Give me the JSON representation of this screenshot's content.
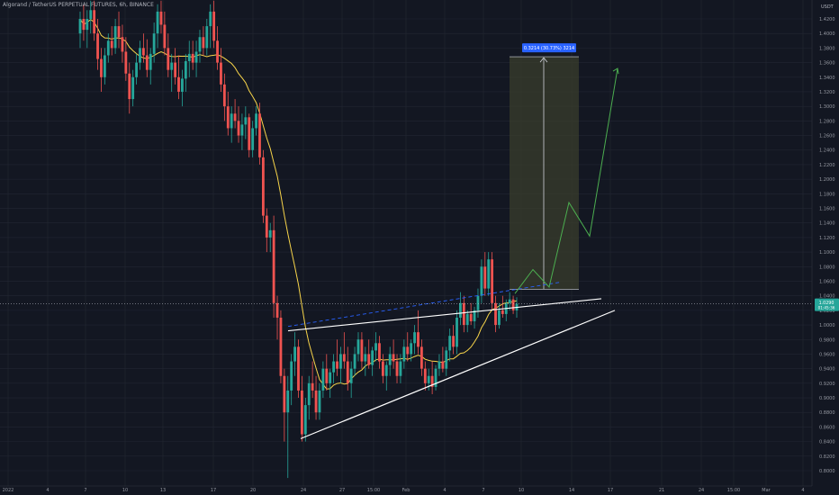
{
  "chart_data": {
    "type": "candlestick",
    "title": "Algorand / TetherUS PERPETUAL FUTURES, 6h, BINANCE",
    "ylabel": "USDT",
    "ylim": [
      0.79,
      1.445
    ],
    "ytick_labels": [
      "1.4200",
      "1.4000",
      "1.3800",
      "1.3600",
      "1.3400",
      "1.3200",
      "1.3000",
      "1.2800",
      "1.2600",
      "1.2400",
      "1.2200",
      "1.2000",
      "1.1800",
      "1.1600",
      "1.1400",
      "1.1200",
      "1.1000",
      "1.0800",
      "1.0600",
      "1.0400",
      "1.0200",
      "1.0000",
      "0.9800",
      "0.9600",
      "0.9400",
      "0.9200",
      "0.9000",
      "0.8800",
      "0.8600",
      "0.8400",
      "0.8200",
      "0.8000"
    ],
    "xtick_labels": [
      "2022",
      "4",
      "7",
      "10",
      "13",
      "17",
      "20",
      "24",
      "27",
      "15:00",
      "Feb",
      "4",
      "7",
      "10",
      "14",
      "17",
      "21",
      "24",
      "15:00",
      "Mar",
      "4"
    ],
    "current_price": "1.0290",
    "current_price_sub": "01:45:36",
    "target_label": "0.3214 (30.73%) 3214",
    "target_box": {
      "bottom": 1.049,
      "top": 1.368
    },
    "projection_path": [
      [
        1.043
      ],
      [
        1.076
      ],
      [
        1.052
      ],
      [
        1.168
      ],
      [
        1.122
      ],
      [
        1.352
      ]
    ],
    "wedge_upper_line": [
      0.992,
      1.036
    ],
    "wedge_lower_line": [
      0.844,
      1.02
    ],
    "resistance_dashed_line": [
      0.998,
      1.059
    ],
    "candles": [
      {
        "o": 1.4,
        "h": 1.43,
        "l": 1.38,
        "c": 1.42
      },
      {
        "o": 1.42,
        "h": 1.44,
        "l": 1.39,
        "c": 1.405
      },
      {
        "o": 1.405,
        "h": 1.432,
        "l": 1.38,
        "c": 1.42
      },
      {
        "o": 1.42,
        "h": 1.445,
        "l": 1.4,
        "c": 1.432
      },
      {
        "o": 1.432,
        "h": 1.445,
        "l": 1.39,
        "c": 1.4
      },
      {
        "o": 1.4,
        "h": 1.42,
        "l": 1.35,
        "c": 1.365
      },
      {
        "o": 1.365,
        "h": 1.38,
        "l": 1.32,
        "c": 1.34
      },
      {
        "o": 1.34,
        "h": 1.38,
        "l": 1.33,
        "c": 1.37
      },
      {
        "o": 1.37,
        "h": 1.4,
        "l": 1.36,
        "c": 1.39
      },
      {
        "o": 1.39,
        "h": 1.41,
        "l": 1.37,
        "c": 1.38
      },
      {
        "o": 1.38,
        "h": 1.42,
        "l": 1.372,
        "c": 1.41
      },
      {
        "o": 1.41,
        "h": 1.43,
        "l": 1.38,
        "c": 1.395
      },
      {
        "o": 1.395,
        "h": 1.412,
        "l": 1.36,
        "c": 1.375
      },
      {
        "o": 1.375,
        "h": 1.395,
        "l": 1.335,
        "c": 1.345
      },
      {
        "o": 1.345,
        "h": 1.36,
        "l": 1.29,
        "c": 1.31
      },
      {
        "o": 1.31,
        "h": 1.35,
        "l": 1.3,
        "c": 1.34
      },
      {
        "o": 1.34,
        "h": 1.372,
        "l": 1.33,
        "c": 1.36
      },
      {
        "o": 1.36,
        "h": 1.39,
        "l": 1.35,
        "c": 1.38
      },
      {
        "o": 1.38,
        "h": 1.4,
        "l": 1.36,
        "c": 1.37
      },
      {
        "o": 1.37,
        "h": 1.392,
        "l": 1.34,
        "c": 1.35
      },
      {
        "o": 1.35,
        "h": 1.38,
        "l": 1.33,
        "c": 1.372
      },
      {
        "o": 1.372,
        "h": 1.415,
        "l": 1.36,
        "c": 1.4
      },
      {
        "o": 1.4,
        "h": 1.44,
        "l": 1.38,
        "c": 1.43
      },
      {
        "o": 1.43,
        "h": 1.445,
        "l": 1.4,
        "c": 1.412
      },
      {
        "o": 1.412,
        "h": 1.43,
        "l": 1.37,
        "c": 1.38
      },
      {
        "o": 1.38,
        "h": 1.4,
        "l": 1.34,
        "c": 1.35
      },
      {
        "o": 1.35,
        "h": 1.372,
        "l": 1.32,
        "c": 1.36
      },
      {
        "o": 1.36,
        "h": 1.38,
        "l": 1.33,
        "c": 1.34
      },
      {
        "o": 1.34,
        "h": 1.37,
        "l": 1.31,
        "c": 1.32
      },
      {
        "o": 1.32,
        "h": 1.35,
        "l": 1.3,
        "c": 1.338
      },
      {
        "o": 1.338,
        "h": 1.372,
        "l": 1.32,
        "c": 1.362
      },
      {
        "o": 1.362,
        "h": 1.39,
        "l": 1.34,
        "c": 1.372
      },
      {
        "o": 1.372,
        "h": 1.39,
        "l": 1.35,
        "c": 1.36
      },
      {
        "o": 1.36,
        "h": 1.39,
        "l": 1.34,
        "c": 1.375
      },
      {
        "o": 1.375,
        "h": 1.405,
        "l": 1.36,
        "c": 1.395
      },
      {
        "o": 1.395,
        "h": 1.41,
        "l": 1.37,
        "c": 1.38
      },
      {
        "o": 1.38,
        "h": 1.42,
        "l": 1.37,
        "c": 1.41
      },
      {
        "o": 1.41,
        "h": 1.44,
        "l": 1.38,
        "c": 1.43
      },
      {
        "o": 1.43,
        "h": 1.445,
        "l": 1.38,
        "c": 1.39
      },
      {
        "o": 1.39,
        "h": 1.41,
        "l": 1.35,
        "c": 1.36
      },
      {
        "o": 1.36,
        "h": 1.38,
        "l": 1.32,
        "c": 1.33
      },
      {
        "o": 1.33,
        "h": 1.345,
        "l": 1.28,
        "c": 1.3
      },
      {
        "o": 1.3,
        "h": 1.32,
        "l": 1.26,
        "c": 1.27
      },
      {
        "o": 1.27,
        "h": 1.3,
        "l": 1.25,
        "c": 1.29
      },
      {
        "o": 1.29,
        "h": 1.31,
        "l": 1.27,
        "c": 1.28
      },
      {
        "o": 1.28,
        "h": 1.3,
        "l": 1.25,
        "c": 1.26
      },
      {
        "o": 1.26,
        "h": 1.29,
        "l": 1.24,
        "c": 1.275
      },
      {
        "o": 1.275,
        "h": 1.3,
        "l": 1.255,
        "c": 1.285
      },
      {
        "o": 1.285,
        "h": 1.29,
        "l": 1.23,
        "c": 1.24
      },
      {
        "o": 1.24,
        "h": 1.28,
        "l": 1.23,
        "c": 1.27
      },
      {
        "o": 1.27,
        "h": 1.3,
        "l": 1.26,
        "c": 1.29
      },
      {
        "o": 1.29,
        "h": 1.305,
        "l": 1.22,
        "c": 1.23
      },
      {
        "o": 1.23,
        "h": 1.24,
        "l": 1.14,
        "c": 1.15
      },
      {
        "o": 1.15,
        "h": 1.16,
        "l": 1.1,
        "c": 1.12
      },
      {
        "o": 1.12,
        "h": 1.14,
        "l": 1.1,
        "c": 1.13
      },
      {
        "o": 1.13,
        "h": 1.15,
        "l": 1.01,
        "c": 1.03
      },
      {
        "o": 1.03,
        "h": 1.04,
        "l": 0.98,
        "c": 1.01
      },
      {
        "o": 1.01,
        "h": 1.02,
        "l": 0.92,
        "c": 0.93
      },
      {
        "o": 0.93,
        "h": 0.94,
        "l": 0.84,
        "c": 0.88
      },
      {
        "o": 0.88,
        "h": 0.93,
        "l": 0.79,
        "c": 0.91
      },
      {
        "o": 0.91,
        "h": 0.96,
        "l": 0.89,
        "c": 0.95
      },
      {
        "o": 0.95,
        "h": 0.99,
        "l": 0.93,
        "c": 0.97
      },
      {
        "o": 0.97,
        "h": 0.98,
        "l": 0.9,
        "c": 0.91
      },
      {
        "o": 0.91,
        "h": 0.93,
        "l": 0.84,
        "c": 0.85
      },
      {
        "o": 0.85,
        "h": 0.9,
        "l": 0.84,
        "c": 0.89
      },
      {
        "o": 0.89,
        "h": 0.93,
        "l": 0.87,
        "c": 0.92
      },
      {
        "o": 0.92,
        "h": 0.95,
        "l": 0.9,
        "c": 0.91
      },
      {
        "o": 0.91,
        "h": 0.93,
        "l": 0.87,
        "c": 0.88
      },
      {
        "o": 0.88,
        "h": 0.92,
        "l": 0.87,
        "c": 0.91
      },
      {
        "o": 0.91,
        "h": 0.95,
        "l": 0.9,
        "c": 0.94
      },
      {
        "o": 0.94,
        "h": 0.96,
        "l": 0.91,
        "c": 0.92
      },
      {
        "o": 0.92,
        "h": 0.94,
        "l": 0.9,
        "c": 0.935
      },
      {
        "o": 0.935,
        "h": 0.96,
        "l": 0.92,
        "c": 0.95
      },
      {
        "o": 0.95,
        "h": 0.98,
        "l": 0.93,
        "c": 0.94
      },
      {
        "o": 0.94,
        "h": 0.97,
        "l": 0.92,
        "c": 0.96
      },
      {
        "o": 0.96,
        "h": 0.99,
        "l": 0.94,
        "c": 0.95
      },
      {
        "o": 0.95,
        "h": 0.97,
        "l": 0.91,
        "c": 0.92
      },
      {
        "o": 0.92,
        "h": 0.95,
        "l": 0.9,
        "c": 0.94
      },
      {
        "o": 0.94,
        "h": 0.97,
        "l": 0.93,
        "c": 0.96
      },
      {
        "o": 0.96,
        "h": 0.99,
        "l": 0.95,
        "c": 0.98
      },
      {
        "o": 0.98,
        "h": 0.99,
        "l": 0.94,
        "c": 0.95
      },
      {
        "o": 0.95,
        "h": 0.97,
        "l": 0.93,
        "c": 0.96
      },
      {
        "o": 0.96,
        "h": 0.98,
        "l": 0.94,
        "c": 0.945
      },
      {
        "o": 0.945,
        "h": 0.97,
        "l": 0.93,
        "c": 0.965
      },
      {
        "o": 0.965,
        "h": 0.99,
        "l": 0.95,
        "c": 0.975
      },
      {
        "o": 0.975,
        "h": 0.985,
        "l": 0.94,
        "c": 0.95
      },
      {
        "o": 0.95,
        "h": 0.96,
        "l": 0.92,
        "c": 0.93
      },
      {
        "o": 0.93,
        "h": 0.95,
        "l": 0.91,
        "c": 0.945
      },
      {
        "o": 0.945,
        "h": 0.97,
        "l": 0.93,
        "c": 0.96
      },
      {
        "o": 0.96,
        "h": 0.98,
        "l": 0.94,
        "c": 0.95
      },
      {
        "o": 0.95,
        "h": 0.96,
        "l": 0.92,
        "c": 0.93
      },
      {
        "o": 0.93,
        "h": 0.96,
        "l": 0.92,
        "c": 0.95
      },
      {
        "o": 0.95,
        "h": 0.98,
        "l": 0.94,
        "c": 0.97
      },
      {
        "o": 0.97,
        "h": 0.99,
        "l": 0.95,
        "c": 0.96
      },
      {
        "o": 0.96,
        "h": 0.98,
        "l": 0.95,
        "c": 0.975
      },
      {
        "o": 0.975,
        "h": 1.0,
        "l": 0.96,
        "c": 0.99
      },
      {
        "o": 0.99,
        "h": 1.02,
        "l": 0.96,
        "c": 0.97
      },
      {
        "o": 0.97,
        "h": 0.98,
        "l": 0.93,
        "c": 0.94
      },
      {
        "o": 0.94,
        "h": 0.95,
        "l": 0.91,
        "c": 0.92
      },
      {
        "o": 0.92,
        "h": 0.94,
        "l": 0.91,
        "c": 0.93
      },
      {
        "o": 0.93,
        "h": 0.95,
        "l": 0.905,
        "c": 0.915
      },
      {
        "o": 0.915,
        "h": 0.945,
        "l": 0.91,
        "c": 0.94
      },
      {
        "o": 0.94,
        "h": 0.96,
        "l": 0.93,
        "c": 0.95
      },
      {
        "o": 0.95,
        "h": 0.97,
        "l": 0.935,
        "c": 0.94
      },
      {
        "o": 0.94,
        "h": 0.97,
        "l": 0.93,
        "c": 0.965
      },
      {
        "o": 0.965,
        "h": 0.995,
        "l": 0.95,
        "c": 0.985
      },
      {
        "o": 0.985,
        "h": 1.0,
        "l": 0.96,
        "c": 0.97
      },
      {
        "o": 0.97,
        "h": 1.02,
        "l": 0.96,
        "c": 1.01
      },
      {
        "o": 1.01,
        "h": 1.045,
        "l": 1.0,
        "c": 1.03
      },
      {
        "o": 1.03,
        "h": 1.04,
        "l": 0.99,
        "c": 1.0
      },
      {
        "o": 1.0,
        "h": 1.02,
        "l": 0.99,
        "c": 1.015
      },
      {
        "o": 1.015,
        "h": 1.03,
        "l": 1.0,
        "c": 1.005
      },
      {
        "o": 1.005,
        "h": 1.025,
        "l": 0.995,
        "c": 1.02
      },
      {
        "o": 1.02,
        "h": 1.05,
        "l": 1.01,
        "c": 1.04
      },
      {
        "o": 1.04,
        "h": 1.09,
        "l": 1.03,
        "c": 1.08
      },
      {
        "o": 1.08,
        "h": 1.1,
        "l": 1.04,
        "c": 1.05
      },
      {
        "o": 1.05,
        "h": 1.1,
        "l": 1.04,
        "c": 1.09
      },
      {
        "o": 1.09,
        "h": 1.1,
        "l": 1.02,
        "c": 1.03
      },
      {
        "o": 1.03,
        "h": 1.04,
        "l": 0.99,
        "c": 1.0
      },
      {
        "o": 1.0,
        "h": 1.03,
        "l": 0.995,
        "c": 1.02
      },
      {
        "o": 1.02,
        "h": 1.04,
        "l": 1.01,
        "c": 1.015
      },
      {
        "o": 1.015,
        "h": 1.035,
        "l": 1.005,
        "c": 1.03
      },
      {
        "o": 1.03,
        "h": 1.045,
        "l": 1.02,
        "c": 1.035
      },
      {
        "o": 1.035,
        "h": 1.04,
        "l": 1.015,
        "c": 1.02
      },
      {
        "o": 1.02,
        "h": 1.038,
        "l": 1.01,
        "c": 1.029
      }
    ]
  },
  "colors": {
    "background": "#131722",
    "up": "#26a69a",
    "down": "#ef5350",
    "ma": "#f7d44a",
    "trendline": "#ffffff",
    "dashed": "#2962ff",
    "projection": "#4caf50",
    "target_box": "#3a3d2c",
    "label_bg": "#2962ff",
    "axis_text": "#9598a1"
  }
}
